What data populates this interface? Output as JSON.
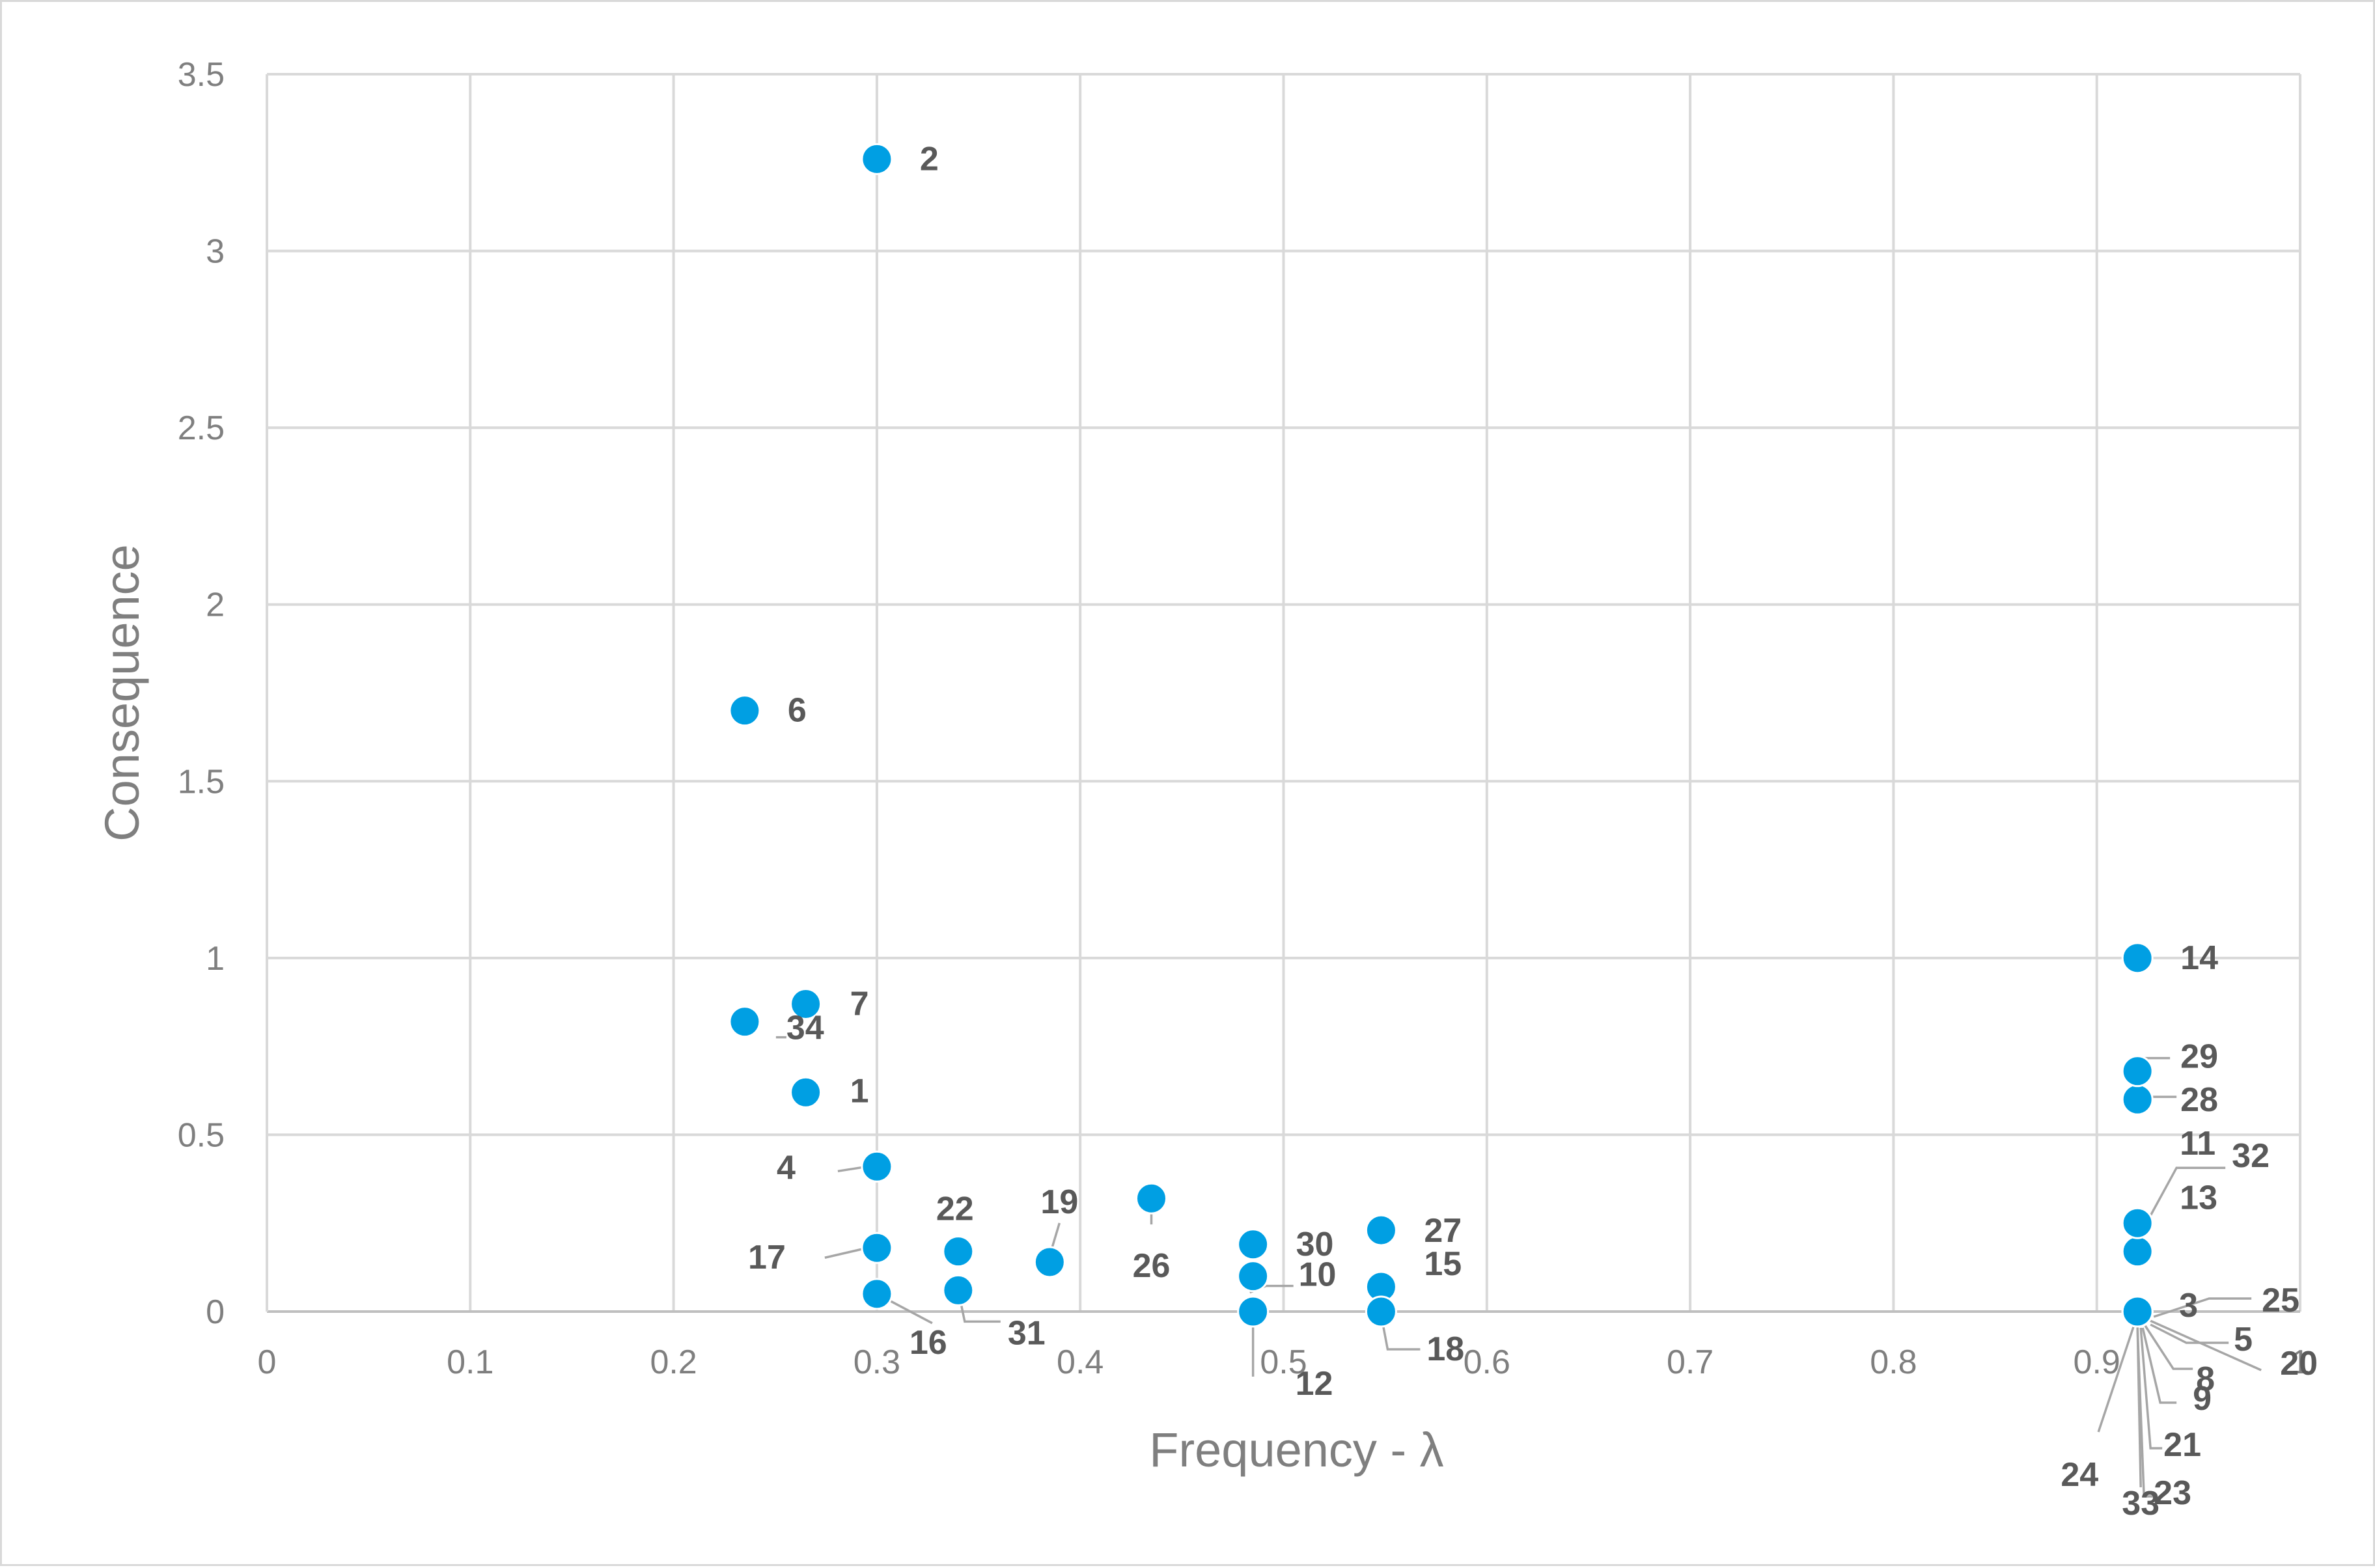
{
  "chart_data": {
    "type": "scatter",
    "xlabel": "Frequency - λ",
    "ylabel": "Consequence",
    "xlim": [
      0,
      1
    ],
    "ylim": [
      0,
      3.5
    ],
    "x_ticks": [
      "0",
      "0.1",
      "0.2",
      "0.3",
      "0.4",
      "0.5",
      "0.6",
      "0.7",
      "0.8",
      "0.9",
      "1"
    ],
    "y_ticks": [
      "0",
      "0.5",
      "1",
      "1.5",
      "2",
      "2.5",
      "3",
      "3.5"
    ],
    "grid": true,
    "marker_color": "#009fe3",
    "points": [
      {
        "label": "1",
        "x": 0.265,
        "y": 0.62
      },
      {
        "label": "2",
        "x": 0.3,
        "y": 3.26
      },
      {
        "label": "3",
        "x": 0.92,
        "y": 0.0
      },
      {
        "label": "4",
        "x": 0.3,
        "y": 0.41
      },
      {
        "label": "5",
        "x": 0.92,
        "y": 0.0
      },
      {
        "label": "6",
        "x": 0.235,
        "y": 1.7
      },
      {
        "label": "7",
        "x": 0.265,
        "y": 0.87
      },
      {
        "label": "8",
        "x": 0.92,
        "y": 0.0
      },
      {
        "label": "9",
        "x": 0.92,
        "y": 0.0
      },
      {
        "label": "10",
        "x": 0.485,
        "y": 0.1
      },
      {
        "label": "11",
        "x": 0.92,
        "y": 0.25
      },
      {
        "label": "12",
        "x": 0.485,
        "y": 0.0
      },
      {
        "label": "13",
        "x": 0.92,
        "y": 0.17
      },
      {
        "label": "14",
        "x": 0.92,
        "y": 1.0
      },
      {
        "label": "15",
        "x": 0.548,
        "y": 0.07
      },
      {
        "label": "16",
        "x": 0.3,
        "y": 0.05
      },
      {
        "label": "17",
        "x": 0.3,
        "y": 0.18
      },
      {
        "label": "18",
        "x": 0.548,
        "y": 0.0
      },
      {
        "label": "19",
        "x": 0.385,
        "y": 0.14
      },
      {
        "label": "20",
        "x": 0.92,
        "y": 0.0
      },
      {
        "label": "21",
        "x": 0.92,
        "y": 0.0
      },
      {
        "label": "22",
        "x": 0.34,
        "y": 0.17
      },
      {
        "label": "23",
        "x": 0.92,
        "y": 0.0
      },
      {
        "label": "24",
        "x": 0.92,
        "y": 0.0
      },
      {
        "label": "25",
        "x": 0.92,
        "y": 0.0
      },
      {
        "label": "26",
        "x": 0.435,
        "y": 0.32
      },
      {
        "label": "27",
        "x": 0.548,
        "y": 0.23
      },
      {
        "label": "28",
        "x": 0.92,
        "y": 0.6
      },
      {
        "label": "29",
        "x": 0.92,
        "y": 0.68
      },
      {
        "label": "30",
        "x": 0.485,
        "y": 0.19
      },
      {
        "label": "31",
        "x": 0.34,
        "y": 0.06
      },
      {
        "label": "32",
        "x": 0.92,
        "y": 0.25
      },
      {
        "label": "33",
        "x": 0.92,
        "y": 0.0
      },
      {
        "label": "34",
        "x": 0.235,
        "y": 0.82
      }
    ]
  }
}
